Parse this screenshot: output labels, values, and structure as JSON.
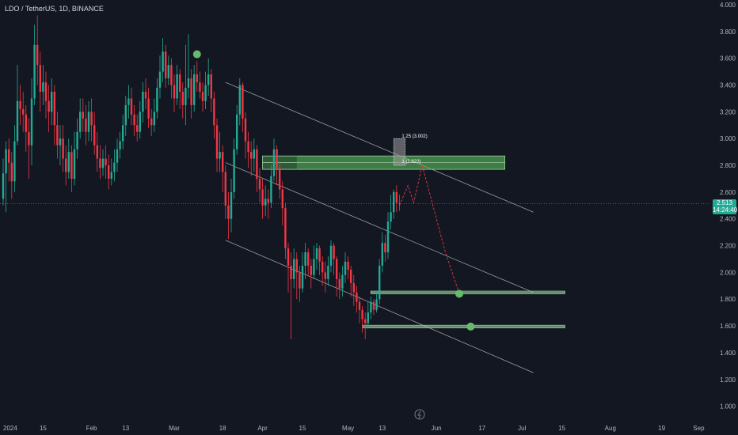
{
  "header": {
    "title": "LDO / TetherUS, 1D, BINANCE"
  },
  "price_tag": {
    "price": "2.513",
    "countdown": "14:24:40"
  },
  "colors": {
    "up": "#22ab94",
    "down": "#f23645",
    "zone": "#4caf50",
    "background": "#131722",
    "channel": "#c8c8c8",
    "projection": "#f23645"
  },
  "chart_data": {
    "type": "candlestick",
    "symbol": "LDO / TetherUS",
    "interval": "1D",
    "exchange": "BINANCE",
    "ylim": [
      0.98,
      4.0
    ],
    "yticks": [
      "4.000",
      "3.800",
      "3.600",
      "3.400",
      "3.200",
      "3.000",
      "2.800",
      "2.600",
      "2.400",
      "2.200",
      "2.000",
      "1.800",
      "1.600",
      "1.400",
      "1.200",
      "1.000"
    ],
    "xticks": [
      {
        "label": "2024",
        "day": 0
      },
      {
        "label": "15",
        "day": 14
      },
      {
        "label": "Feb",
        "day": 31
      },
      {
        "label": "13",
        "day": 43
      },
      {
        "label": "Mar",
        "day": 60
      },
      {
        "label": "18",
        "day": 77
      },
      {
        "label": "Apr",
        "day": 91
      },
      {
        "label": "15",
        "day": 105
      },
      {
        "label": "May",
        "day": 121
      },
      {
        "label": "13",
        "day": 133
      },
      {
        "label": "Jun",
        "day": 152
      },
      {
        "label": "17",
        "day": 168
      },
      {
        "label": "Jul",
        "day": 182
      },
      {
        "label": "15",
        "day": 196
      },
      {
        "label": "Aug",
        "day": 213
      },
      {
        "label": "19",
        "day": 231
      },
      {
        "label": "Sep",
        "day": 244
      }
    ],
    "last_price": 2.513,
    "candles": [
      [
        0,
        2.55,
        2.74,
        2.85,
        2.5
      ],
      [
        1,
        2.74,
        2.92,
        2.98,
        2.45
      ],
      [
        2,
        2.92,
        2.82,
        3.0,
        2.68
      ],
      [
        3,
        2.82,
        2.68,
        2.9,
        2.55
      ],
      [
        4,
        2.68,
        2.98,
        3.1,
        2.6
      ],
      [
        5,
        2.98,
        3.28,
        3.55,
        2.95
      ],
      [
        6,
        3.28,
        3.22,
        3.4,
        3.1
      ],
      [
        7,
        3.22,
        3.18,
        3.35,
        3.05
      ],
      [
        8,
        3.18,
        3.05,
        3.25,
        2.9
      ],
      [
        9,
        3.05,
        2.95,
        3.15,
        2.7
      ],
      [
        10,
        2.95,
        3.3,
        3.45,
        2.8
      ],
      [
        11,
        3.3,
        3.7,
        3.85,
        3.25
      ],
      [
        12,
        3.7,
        3.55,
        3.92,
        3.4
      ],
      [
        13,
        3.55,
        3.35,
        3.65,
        3.2
      ],
      [
        14,
        3.35,
        3.42,
        3.55,
        3.25
      ],
      [
        15,
        3.42,
        3.28,
        3.5,
        3.15
      ],
      [
        16,
        3.28,
        3.2,
        3.4,
        3.05
      ],
      [
        17,
        3.2,
        3.35,
        3.45,
        3.1
      ],
      [
        18,
        3.35,
        3.1,
        3.4,
        2.95
      ],
      [
        19,
        3.1,
        2.95,
        3.2,
        2.85
      ],
      [
        20,
        2.95,
        3.0,
        3.1,
        2.8
      ],
      [
        21,
        3.0,
        2.85,
        3.1,
        2.75
      ],
      [
        22,
        2.85,
        2.75,
        2.95,
        2.65
      ],
      [
        23,
        2.75,
        2.9,
        3.0,
        2.7
      ],
      [
        24,
        2.9,
        2.7,
        2.95,
        2.6
      ],
      [
        25,
        2.7,
        2.92,
        3.05,
        2.65
      ],
      [
        26,
        2.92,
        3.05,
        3.15,
        2.85
      ],
      [
        27,
        3.05,
        3.2,
        3.3,
        3.0
      ],
      [
        28,
        3.2,
        3.15,
        3.3,
        3.05
      ],
      [
        29,
        3.15,
        3.05,
        3.25,
        2.95
      ],
      [
        30,
        3.05,
        3.2,
        3.28,
        2.98
      ],
      [
        31,
        3.2,
        3.1,
        3.3,
        2.98
      ],
      [
        32,
        3.1,
        2.95,
        3.2,
        2.88
      ],
      [
        33,
        2.95,
        2.85,
        3.05,
        2.75
      ],
      [
        34,
        2.85,
        2.78,
        2.95,
        2.7
      ],
      [
        35,
        2.78,
        2.85,
        2.92,
        2.72
      ],
      [
        36,
        2.85,
        2.8,
        2.95,
        2.7
      ],
      [
        37,
        2.8,
        2.7,
        2.88,
        2.62
      ],
      [
        38,
        2.7,
        2.75,
        2.85,
        2.65
      ],
      [
        39,
        2.75,
        2.82,
        2.92,
        2.68
      ],
      [
        40,
        2.82,
        2.92,
        3.0,
        2.75
      ],
      [
        41,
        2.92,
        2.98,
        3.05,
        2.85
      ],
      [
        42,
        2.98,
        3.1,
        3.18,
        2.92
      ],
      [
        43,
        3.1,
        3.25,
        3.32,
        3.02
      ],
      [
        44,
        3.25,
        3.3,
        3.4,
        3.15
      ],
      [
        45,
        3.3,
        3.18,
        3.38,
        3.1
      ],
      [
        46,
        3.18,
        3.1,
        3.25,
        3.02
      ],
      [
        47,
        3.1,
        3.05,
        3.18,
        2.98
      ],
      [
        48,
        3.05,
        3.2,
        3.28,
        3.0
      ],
      [
        49,
        3.2,
        3.35,
        3.42,
        3.12
      ],
      [
        50,
        3.35,
        3.3,
        3.45,
        3.22
      ],
      [
        51,
        3.3,
        3.15,
        3.38,
        3.08
      ],
      [
        52,
        3.15,
        3.1,
        3.22,
        3.02
      ],
      [
        53,
        3.1,
        3.2,
        3.3,
        3.05
      ],
      [
        54,
        3.2,
        3.38,
        3.45,
        3.15
      ],
      [
        55,
        3.38,
        3.5,
        3.62,
        3.3
      ],
      [
        56,
        3.5,
        3.65,
        3.75,
        3.42
      ],
      [
        57,
        3.65,
        3.45,
        3.7,
        3.38
      ],
      [
        58,
        3.45,
        3.55,
        3.62,
        3.4
      ],
      [
        59,
        3.55,
        3.4,
        3.6,
        3.3
      ],
      [
        60,
        3.4,
        3.3,
        3.48,
        3.2
      ],
      [
        61,
        3.3,
        3.48,
        3.55,
        3.25
      ],
      [
        62,
        3.48,
        3.35,
        3.52,
        3.22
      ],
      [
        63,
        3.35,
        3.25,
        3.42,
        3.15
      ],
      [
        64,
        3.25,
        3.38,
        3.7,
        3.1
      ],
      [
        65,
        3.38,
        3.45,
        3.78,
        3.3
      ],
      [
        66,
        3.45,
        3.25,
        3.52,
        3.15
      ],
      [
        67,
        3.25,
        3.48,
        3.55,
        3.2
      ],
      [
        68,
        3.48,
        3.42,
        3.58,
        3.35
      ],
      [
        69,
        3.42,
        3.35,
        3.5,
        3.3
      ],
      [
        70,
        3.35,
        3.28,
        3.42,
        3.2
      ],
      [
        71,
        3.28,
        3.4,
        3.5,
        3.22
      ],
      [
        72,
        3.4,
        3.48,
        3.6,
        3.32
      ],
      [
        73,
        3.48,
        3.3,
        3.52,
        3.2
      ],
      [
        74,
        3.3,
        3.1,
        3.35,
        3.0
      ],
      [
        75,
        3.1,
        2.85,
        3.15,
        2.75
      ],
      [
        76,
        2.85,
        2.9,
        3.05,
        2.75
      ],
      [
        77,
        2.9,
        2.75,
        2.95,
        2.6
      ],
      [
        78,
        2.75,
        2.5,
        2.8,
        2.4
      ],
      [
        79,
        2.5,
        2.4,
        2.6,
        2.25
      ],
      [
        80,
        2.4,
        2.6,
        2.7,
        2.3
      ],
      [
        81,
        2.6,
        2.92,
        3.0,
        2.55
      ],
      [
        82,
        2.92,
        3.18,
        3.25,
        2.88
      ],
      [
        83,
        3.18,
        3.4,
        3.45,
        3.1
      ],
      [
        84,
        3.4,
        3.15,
        3.42,
        3.05
      ],
      [
        85,
        3.15,
        2.98,
        3.2,
        2.85
      ],
      [
        86,
        2.98,
        2.9,
        3.05,
        2.78
      ],
      [
        87,
        2.9,
        2.85,
        2.98,
        2.72
      ],
      [
        88,
        2.85,
        2.92,
        3.0,
        2.75
      ],
      [
        89,
        2.92,
        2.7,
        2.95,
        2.6
      ],
      [
        90,
        2.7,
        2.62,
        2.78,
        2.52
      ],
      [
        91,
        2.62,
        2.5,
        2.7,
        2.4
      ],
      [
        92,
        2.5,
        2.55,
        2.65,
        2.42
      ],
      [
        93,
        2.55,
        2.52,
        2.62,
        2.4
      ],
      [
        94,
        2.52,
        2.72,
        2.8,
        2.48
      ],
      [
        95,
        2.72,
        2.92,
        3.0,
        2.68
      ],
      [
        96,
        2.92,
        2.78,
        2.95,
        2.65
      ],
      [
        97,
        2.78,
        2.62,
        2.82,
        2.55
      ],
      [
        98,
        2.62,
        2.48,
        2.68,
        2.35
      ],
      [
        99,
        2.48,
        2.18,
        2.52,
        2.1
      ],
      [
        100,
        2.18,
        2.05,
        2.22,
        1.85
      ],
      [
        101,
        2.05,
        1.95,
        2.15,
        1.5
      ],
      [
        102,
        1.95,
        2.1,
        2.18,
        1.88
      ],
      [
        103,
        2.1,
        2.0,
        2.15,
        1.8
      ],
      [
        104,
        2.0,
        1.88,
        2.05,
        1.78
      ],
      [
        105,
        1.88,
        2.05,
        2.15,
        1.85
      ],
      [
        106,
        2.05,
        2.15,
        2.22,
        1.95
      ],
      [
        107,
        2.15,
        2.05,
        2.18,
        1.98
      ],
      [
        108,
        2.05,
        1.98,
        2.1,
        1.88
      ],
      [
        109,
        1.98,
        2.1,
        2.2,
        1.95
      ],
      [
        110,
        2.1,
        2.18,
        2.22,
        2.02
      ],
      [
        111,
        2.18,
        2.08,
        2.2,
        1.98
      ],
      [
        112,
        2.08,
        2.0,
        2.12,
        1.9
      ],
      [
        113,
        2.0,
        1.95,
        2.08,
        1.85
      ],
      [
        114,
        1.95,
        2.05,
        2.12,
        1.9
      ],
      [
        115,
        2.05,
        2.2,
        2.24,
        2.0
      ],
      [
        116,
        2.2,
        2.1,
        2.22,
        1.98
      ],
      [
        117,
        2.1,
        1.95,
        2.12,
        1.82
      ],
      [
        118,
        1.95,
        1.88,
        2.0,
        1.8
      ],
      [
        119,
        1.88,
        1.98,
        2.05,
        1.82
      ],
      [
        120,
        1.98,
        2.08,
        2.15,
        1.92
      ],
      [
        121,
        2.08,
        2.02,
        2.12,
        1.95
      ],
      [
        122,
        2.02,
        1.92,
        2.05,
        1.82
      ],
      [
        123,
        1.92,
        1.85,
        1.98,
        1.75
      ],
      [
        124,
        1.85,
        1.78,
        1.9,
        1.7
      ],
      [
        125,
        1.78,
        1.72,
        1.82,
        1.62
      ],
      [
        126,
        1.72,
        1.65,
        1.75,
        1.55
      ],
      [
        127,
        1.65,
        1.62,
        1.7,
        1.5
      ],
      [
        128,
        1.62,
        1.7,
        1.78,
        1.58
      ],
      [
        129,
        1.7,
        1.78,
        1.82,
        1.65
      ],
      [
        130,
        1.78,
        1.72,
        1.8,
        1.68
      ],
      [
        131,
        1.72,
        1.8,
        1.85,
        1.7
      ],
      [
        132,
        1.8,
        2.05,
        2.1,
        1.76
      ],
      [
        133,
        2.05,
        2.22,
        2.3,
        2.0
      ],
      [
        134,
        2.22,
        2.15,
        2.28,
        2.08
      ],
      [
        135,
        2.15,
        2.38,
        2.45,
        2.1
      ],
      [
        136,
        2.38,
        2.45,
        2.58,
        2.32
      ],
      [
        137,
        2.45,
        2.6,
        2.62,
        2.4
      ],
      [
        138,
        2.6,
        2.52,
        2.65,
        2.45
      ],
      [
        139,
        2.52,
        2.513,
        2.58,
        2.46
      ]
    ],
    "zones": [
      {
        "name": "resistance zone",
        "start_day": 91,
        "end_day": 176,
        "low": 2.77,
        "high": 2.87
      },
      {
        "name": "target zone 1",
        "start_day": 129,
        "end_day": 197,
        "low": 1.84,
        "high": 1.86
      },
      {
        "name": "target zone 2",
        "start_day": 126,
        "end_day": 197,
        "low": 1.585,
        "high": 1.605
      }
    ],
    "channel_lines": [
      {
        "name": "channel-upper",
        "from": {
          "day": 78,
          "price": 3.42
        },
        "to": {
          "day": 186,
          "price": 2.45
        }
      },
      {
        "name": "channel-middle",
        "from": {
          "day": 78,
          "price": 2.82
        },
        "to": {
          "day": 186,
          "price": 1.85
        }
      },
      {
        "name": "channel-lower",
        "from": {
          "day": 78,
          "price": 2.24
        },
        "to": {
          "day": 186,
          "price": 1.25
        }
      }
    ],
    "projection": [
      {
        "day": 139,
        "price": 2.5
      },
      {
        "day": 142,
        "price": 2.65
      },
      {
        "day": 144,
        "price": 2.52
      },
      {
        "day": 147,
        "price": 2.8
      },
      {
        "day": 155,
        "price": 2.16
      },
      {
        "day": 160,
        "price": 1.84
      }
    ],
    "markers": [
      {
        "name": "high marker",
        "day": 68,
        "price": 3.63
      },
      {
        "name": "target 1 marker",
        "day": 160,
        "price": 1.84
      },
      {
        "name": "target 2 marker",
        "day": 164,
        "price": 1.595
      }
    ],
    "annotations": [
      {
        "text": "1.25 (3.002)",
        "day": 139,
        "price": 3.02
      },
      {
        "text": "1 (2.822)",
        "day": 139,
        "price": 2.83
      }
    ],
    "fib_box": {
      "start_day": 137,
      "end_day": 141,
      "low": 2.8,
      "high": 3.0
    }
  }
}
